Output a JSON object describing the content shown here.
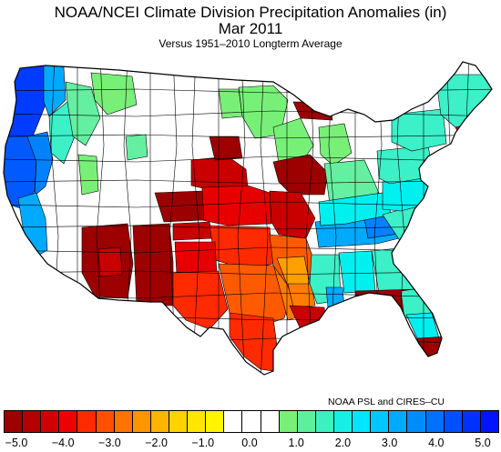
{
  "title": "NOAA/NCEI Climate Division Precipitation Anomalies (in)",
  "subtitle": "Mar 2011",
  "caption": "Versus 1951–2010 Longterm Average",
  "credit": "NOAA PSL and CIRES–CU",
  "colors": {
    "negative": [
      "#9c0000",
      "#c80000",
      "#e60000",
      "#ff2a00",
      "#ff5a00",
      "#ff7d00",
      "#ffa000",
      "#ffbe00",
      "#ffd800",
      "#fff000"
    ],
    "neutral": "#ffffff",
    "positive": [
      "#78f078",
      "#64f0a0",
      "#3cf0c8",
      "#00f0f0",
      "#00d2ff",
      "#00aaff",
      "#0082ff",
      "#005aff",
      "#003cff",
      "#0000ff"
    ]
  },
  "colorbar": {
    "swatches": [
      "#9c0000",
      "#b40000",
      "#d20000",
      "#ee0000",
      "#ff2a00",
      "#ff5000",
      "#ff7300",
      "#ff9600",
      "#ffb400",
      "#ffd200",
      "#ffe600",
      "#fff500",
      "#ffffff",
      "#ffffff",
      "#ffffff",
      "#78f078",
      "#5af09c",
      "#3cf0c0",
      "#14f0e6",
      "#00e6ff",
      "#00c8ff",
      "#00aaff",
      "#008cff",
      "#0070ff",
      "#0050ff",
      "#0032ff",
      "#0014ff"
    ],
    "tick_labels": [
      "−5.0",
      "−4.0",
      "−3.0",
      "−2.0",
      "−1.0",
      "0.0",
      "1.0",
      "2.0",
      "3.0",
      "4.0",
      "5.0"
    ]
  }
}
